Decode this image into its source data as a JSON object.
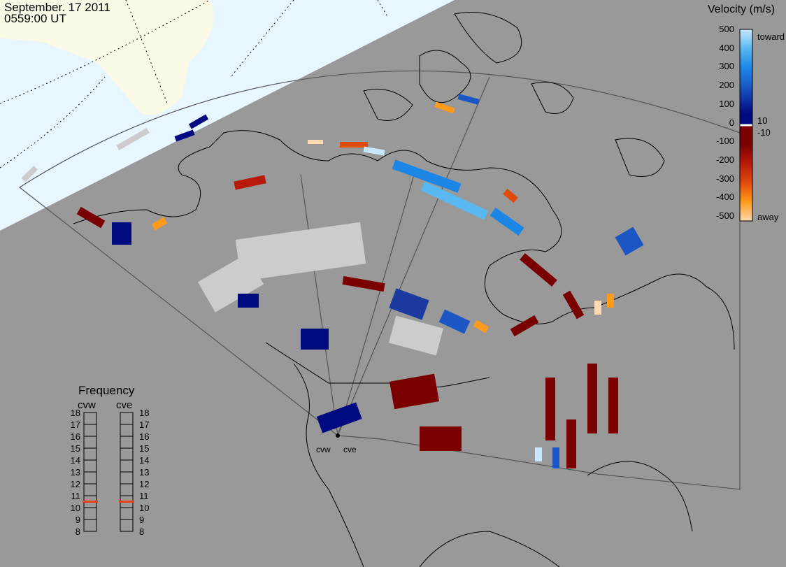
{
  "header": {
    "date": "September. 17 2011",
    "time": "0559:00 UT"
  },
  "velocity_scale": {
    "title": "Velocity (m/s)",
    "ticks": [
      "500",
      "400",
      "300",
      "200",
      "100",
      "0",
      "-100",
      "-200",
      "-300",
      "-400",
      "-500"
    ],
    "inner_ticks": [
      "10",
      "-10"
    ],
    "toward_label": "toward",
    "away_label": "away",
    "colors": [
      "#c8e8ff",
      "#5ab8f0",
      "#1c86e6",
      "#1a56c4",
      "#000a80",
      "#ffffff",
      "#7a0000",
      "#b81a0a",
      "#e04a0a",
      "#ff9a1a",
      "#ffd9b0"
    ]
  },
  "frequency": {
    "title": "Frequency",
    "radars": [
      {
        "name": "cvw",
        "value_mhz": 10.5
      },
      {
        "name": "cve",
        "value_mhz": 10.5
      }
    ],
    "ticks": [
      "18",
      "17",
      "16",
      "15",
      "14",
      "13",
      "12",
      "11",
      "10",
      "9",
      "8"
    ],
    "marker_color": "#e8401a"
  },
  "map": {
    "site_labels": [
      "cvw",
      "cve"
    ],
    "colors": {
      "background": "#999999",
      "sunlit": "#e8f6ff",
      "land_daylight": "#fafae6",
      "no_data": "#cccccc"
    }
  }
}
